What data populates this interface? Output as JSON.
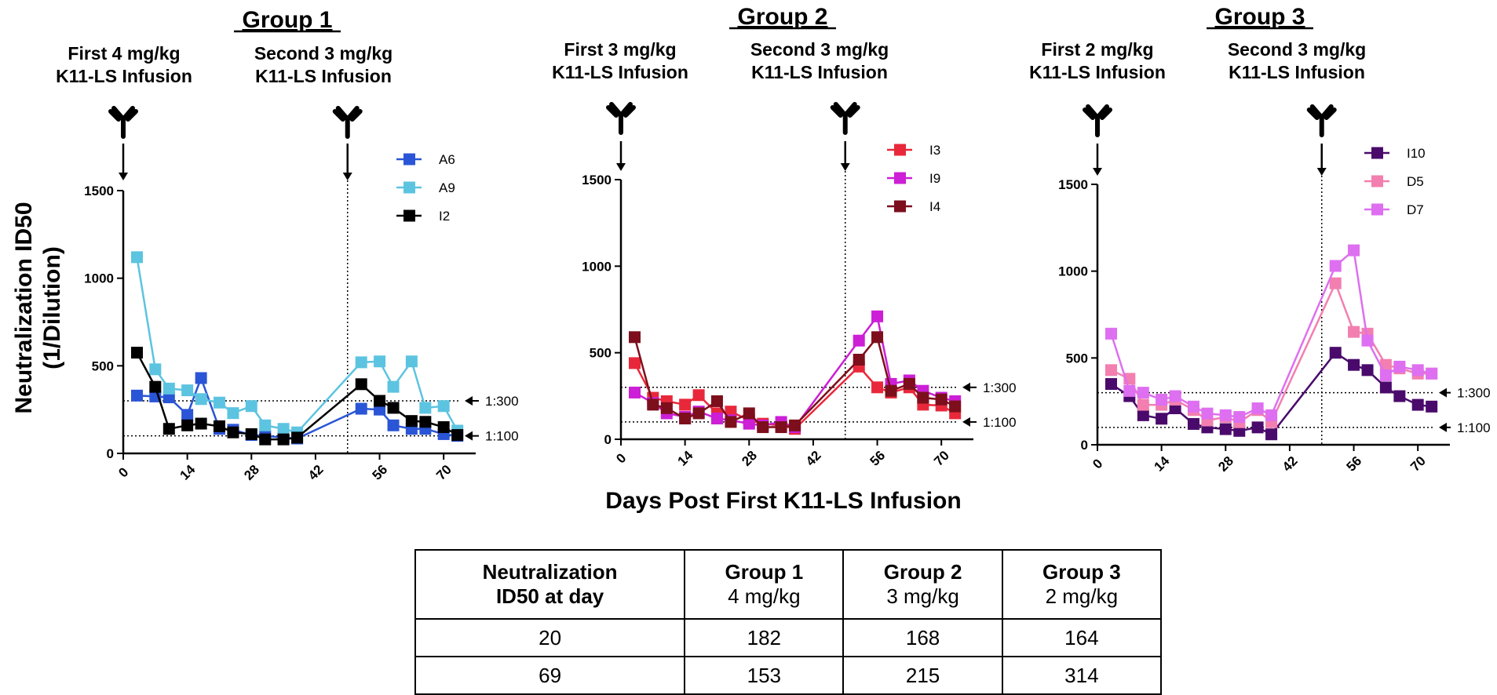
{
  "chart_data": [
    {
      "type": "line",
      "title": "Group 1",
      "annotations": {
        "first_infusion": [
          "First 4 mg/kg",
          "K11-LS Infusion"
        ],
        "second_infusion": [
          "Second 3 mg/kg",
          "K11-LS Infusion"
        ],
        "first_infusion_day": 0,
        "second_infusion_day": 49
      },
      "xlabel": "Days Post First K11-LS Infusion",
      "ylabel": [
        "Neutralization ID50",
        "(1/Dilution)"
      ],
      "xlim": [
        0,
        77
      ],
      "ylim": [
        0,
        1500
      ],
      "xticks": [
        0,
        14,
        28,
        42,
        56,
        70
      ],
      "yticks": [
        0,
        500,
        1000,
        1500
      ],
      "reference_lines": [
        {
          "y": 300,
          "label": "1:300"
        },
        {
          "y": 100,
          "label": "1:100"
        }
      ],
      "legend_position": "top-right",
      "series": [
        {
          "name": "A6",
          "color": "#2a55d6",
          "x": [
            3,
            7,
            10,
            14,
            17,
            21,
            24,
            28,
            31,
            35,
            38,
            52,
            56,
            59,
            63,
            66,
            70,
            73
          ],
          "y": [
            330,
            325,
            320,
            220,
            430,
            140,
            135,
            105,
            100,
            90,
            85,
            255,
            250,
            160,
            140,
            140,
            110,
            100
          ]
        },
        {
          "name": "A9",
          "color": "#5cc4e0",
          "x": [
            3,
            7,
            10,
            14,
            17,
            21,
            24,
            28,
            31,
            35,
            38,
            52,
            56,
            59,
            63,
            66,
            70,
            73
          ],
          "y": [
            1120,
            480,
            370,
            360,
            310,
            290,
            230,
            270,
            160,
            140,
            120,
            520,
            525,
            380,
            525,
            260,
            270,
            130
          ]
        },
        {
          "name": "I2",
          "color": "#000000",
          "x": [
            3,
            7,
            10,
            14,
            17,
            21,
            24,
            28,
            31,
            35,
            38,
            52,
            56,
            59,
            63,
            66,
            70,
            73
          ],
          "y": [
            575,
            380,
            140,
            160,
            170,
            155,
            120,
            110,
            80,
            80,
            90,
            395,
            300,
            260,
            185,
            180,
            150,
            105
          ]
        }
      ]
    },
    {
      "type": "line",
      "title": "Group 2",
      "annotations": {
        "first_infusion": [
          "First 3 mg/kg",
          "K11-LS Infusion"
        ],
        "second_infusion": [
          "Second 3 mg/kg",
          "K11-LS Infusion"
        ],
        "first_infusion_day": 0,
        "second_infusion_day": 49
      },
      "xlim": [
        0,
        77
      ],
      "ylim": [
        0,
        1500
      ],
      "xticks": [
        0,
        14,
        28,
        42,
        56,
        70
      ],
      "yticks": [
        0,
        500,
        1000,
        1500
      ],
      "reference_lines": [
        {
          "y": 300,
          "label": "1:300"
        },
        {
          "y": 100,
          "label": "1:100"
        }
      ],
      "legend_position": "top-right",
      "series": [
        {
          "name": "I3",
          "color": "#e8283a",
          "x": [
            3,
            7,
            10,
            14,
            17,
            21,
            24,
            28,
            31,
            35,
            38,
            52,
            56,
            59,
            63,
            66,
            70,
            73
          ],
          "y": [
            440,
            240,
            220,
            200,
            255,
            150,
            160,
            110,
            90,
            80,
            60,
            420,
            300,
            270,
            300,
            200,
            195,
            150
          ]
        },
        {
          "name": "I9",
          "color": "#cc1fd6",
          "x": [
            3,
            7,
            10,
            14,
            17,
            21,
            24,
            28,
            31,
            35,
            38,
            52,
            56,
            59,
            63,
            66,
            70,
            73
          ],
          "y": [
            270,
            210,
            150,
            130,
            160,
            120,
            110,
            90,
            80,
            100,
            70,
            570,
            710,
            320,
            340,
            280,
            240,
            220
          ]
        },
        {
          "name": "I4",
          "color": "#7d0f1c",
          "x": [
            3,
            7,
            10,
            14,
            17,
            21,
            24,
            28,
            31,
            35,
            38,
            52,
            56,
            59,
            63,
            66,
            70,
            73
          ],
          "y": [
            590,
            200,
            180,
            120,
            150,
            220,
            100,
            150,
            70,
            70,
            80,
            460,
            590,
            280,
            320,
            240,
            230,
            190
          ]
        }
      ]
    },
    {
      "type": "line",
      "title": "Group 3",
      "annotations": {
        "first_infusion": [
          "First 2 mg/kg",
          "K11-LS Infusion"
        ],
        "second_infusion": [
          "Second 3 mg/kg",
          "K11-LS Infusion"
        ],
        "first_infusion_day": 0,
        "second_infusion_day": 49
      },
      "xlim": [
        0,
        77
      ],
      "ylim": [
        0,
        1500
      ],
      "xticks": [
        0,
        14,
        28,
        42,
        56,
        70
      ],
      "yticks": [
        0,
        500,
        1000,
        1500
      ],
      "reference_lines": [
        {
          "y": 300,
          "label": "1:300"
        },
        {
          "y": 100,
          "label": "1:100"
        }
      ],
      "legend_position": "top-right",
      "series": [
        {
          "name": "I10",
          "color": "#4a0a6b",
          "x": [
            3,
            7,
            10,
            14,
            17,
            21,
            24,
            28,
            31,
            35,
            38,
            52,
            56,
            59,
            63,
            66,
            70,
            73
          ],
          "y": [
            350,
            280,
            170,
            150,
            210,
            120,
            100,
            90,
            80,
            100,
            60,
            530,
            460,
            430,
            330,
            280,
            230,
            220
          ]
        },
        {
          "name": "D5",
          "color": "#f27fb0",
          "x": [
            3,
            7,
            10,
            14,
            17,
            21,
            24,
            28,
            31,
            35,
            38,
            52,
            56,
            59,
            63,
            66,
            70,
            73
          ],
          "y": [
            430,
            380,
            230,
            230,
            260,
            200,
            140,
            160,
            130,
            200,
            130,
            930,
            650,
            640,
            460,
            440,
            410,
            410
          ]
        },
        {
          "name": "D7",
          "color": "#de6ff0",
          "x": [
            3,
            7,
            10,
            14,
            17,
            21,
            24,
            28,
            31,
            35,
            38,
            52,
            56,
            59,
            63,
            66,
            70,
            73
          ],
          "y": [
            640,
            310,
            300,
            260,
            280,
            220,
            180,
            170,
            160,
            210,
            170,
            1030,
            1120,
            600,
            400,
            450,
            430,
            410
          ]
        }
      ]
    },
    {
      "type": "table",
      "columns": [
        {
          "bold": "Neutralization",
          "sub": "ID50 at day",
          "sub_bold": true
        },
        {
          "bold": "Group 1",
          "sub": "4 mg/kg"
        },
        {
          "bold": "Group 2",
          "sub": "3 mg/kg"
        },
        {
          "bold": "Group 3",
          "sub": "2 mg/kg"
        }
      ],
      "rows": [
        [
          "20",
          "182",
          "168",
          "164"
        ],
        [
          "69",
          "153",
          "215",
          "314"
        ]
      ]
    }
  ],
  "shared_xlabel": "Days Post First K11-LS Infusion"
}
